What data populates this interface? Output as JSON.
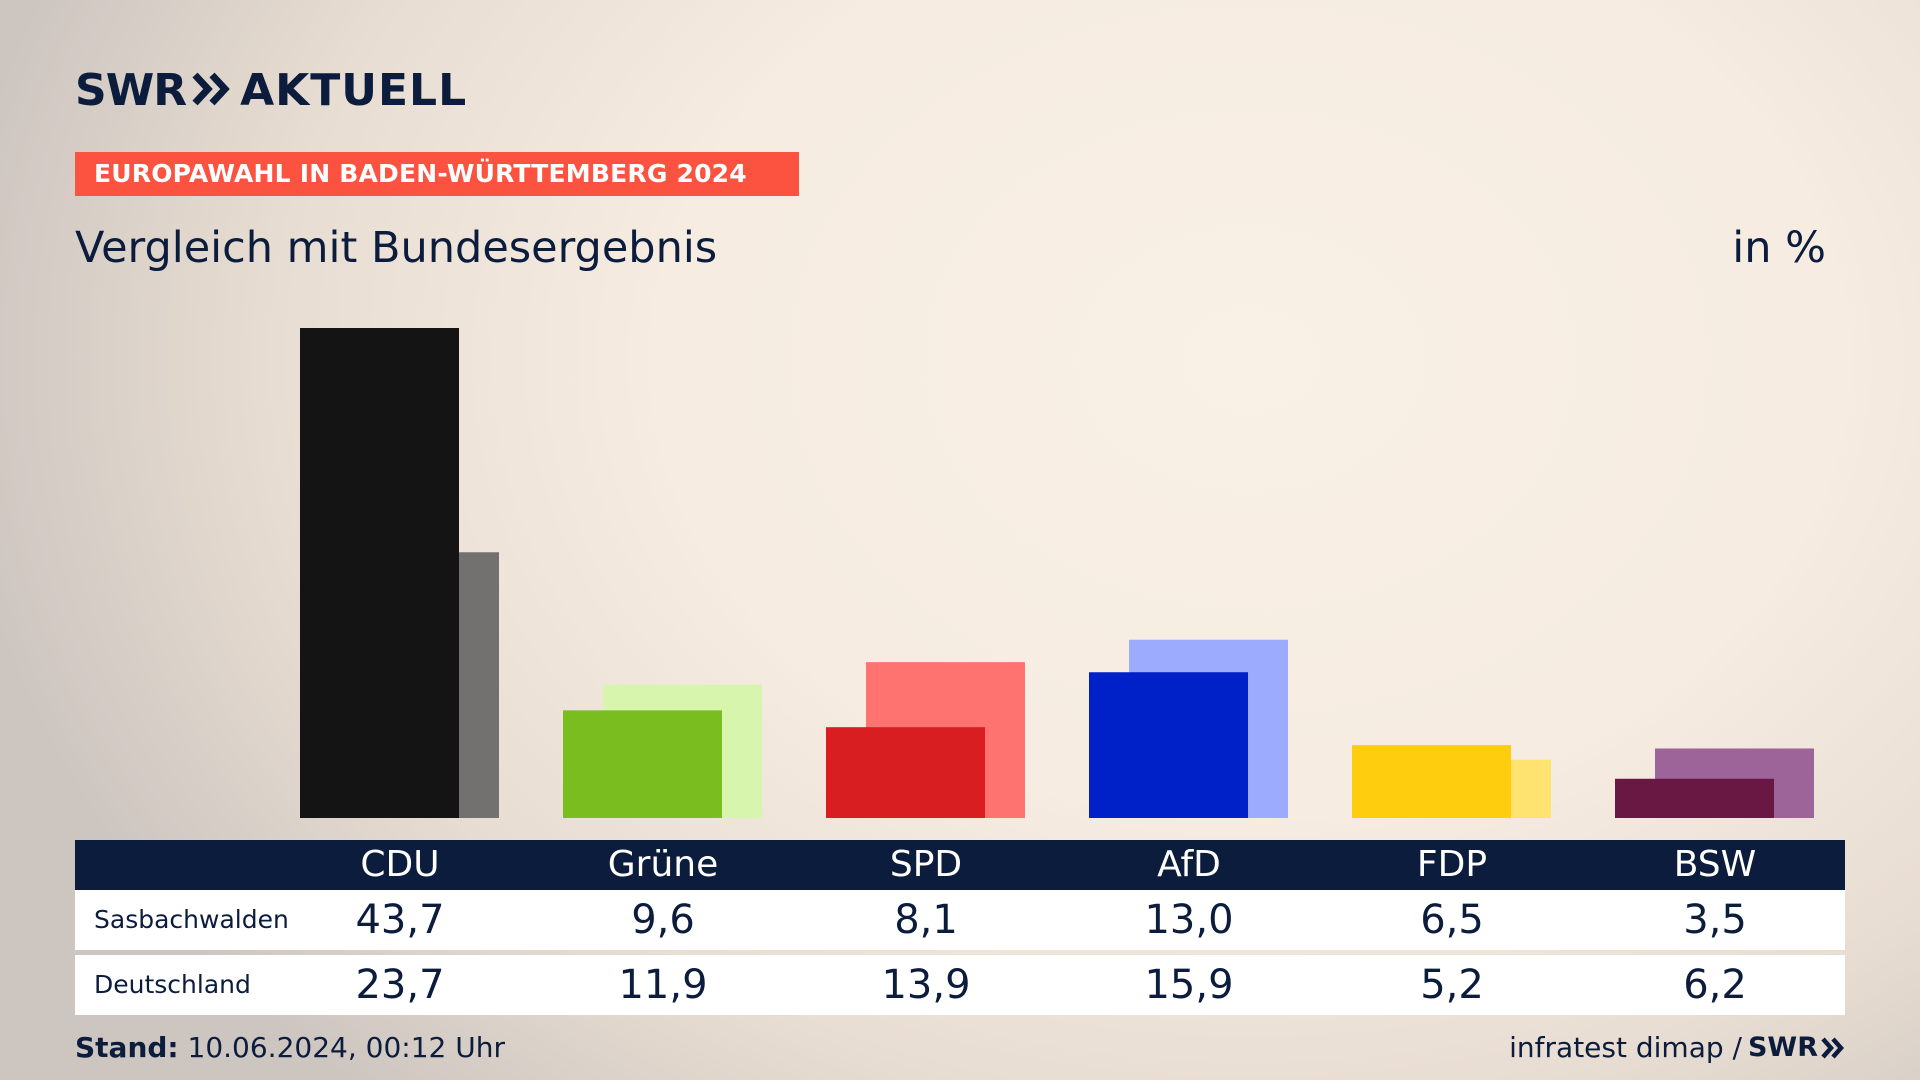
{
  "brand": {
    "swr": "SWR",
    "aktuell": "AKTUELL"
  },
  "header": {
    "banner": "EUROPAWAHL IN BADEN-WÜRTTEMBERG 2024",
    "subtitle": "Vergleich mit Bundesergebnis",
    "unit": "in %"
  },
  "colors": {
    "background": "#f7eee4",
    "navy": "#0c1c3d",
    "banner": "#fb5340"
  },
  "chart_data": {
    "type": "bar",
    "title": "Vergleich mit Bundesergebnis",
    "unit": "in %",
    "categories": [
      "CDU",
      "Grüne",
      "SPD",
      "AfD",
      "FDP",
      "BSW"
    ],
    "series": [
      {
        "name": "Sasbachwalden",
        "values": [
          43.7,
          9.6,
          8.1,
          13.0,
          6.5,
          3.5
        ],
        "labels": [
          "43,7",
          "9,6",
          "8,1",
          "13,0",
          "6,5",
          "3,5"
        ],
        "colors": [
          "#141414",
          "#79bd1e",
          "#d81e20",
          "#0020c8",
          "#fecd0d",
          "#691843"
        ]
      },
      {
        "name": "Deutschland",
        "values": [
          23.7,
          11.9,
          13.9,
          15.9,
          5.2,
          6.2
        ],
        "labels": [
          "23,7",
          "11,9",
          "13,9",
          "15,9",
          "5,2",
          "6,2"
        ],
        "colors": [
          "#727170",
          "#d7f5ad",
          "#fe7370",
          "#9dabff",
          "#ffe370",
          "#9d649a"
        ]
      }
    ],
    "ylim": [
      0,
      43.7
    ],
    "grid": false,
    "legend": "table-below"
  },
  "footer": {
    "stand_label": "Stand:",
    "stand_value": " 10.06.2024, 00:12 Uhr",
    "source": "infratest dimap /",
    "source_brand": "SWR"
  }
}
